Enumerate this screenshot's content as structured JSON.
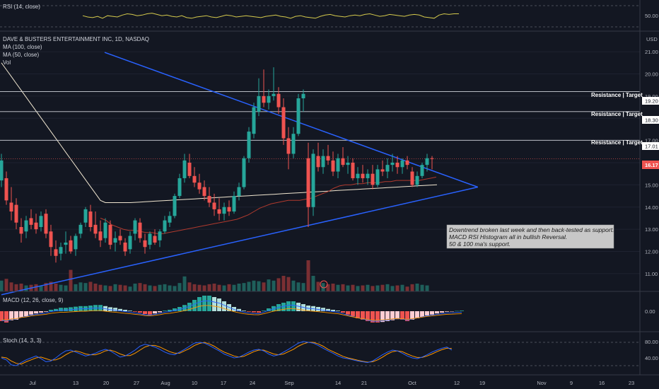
{
  "panes": {
    "rsi": {
      "title": "RSI (14, close)",
      "tick": "50.00"
    },
    "price": {
      "title": "DAVE & BUSTERS ENTERTAINMENT INC, 1D, NASDAQ",
      "indicators": [
        "MA (100, close)",
        "MA (50, close)",
        "Vol"
      ],
      "currency": "USD",
      "last_price": "16.17",
      "levels": [
        {
          "label": "Resistance | Target",
          "value": "19.20"
        },
        {
          "label": "Resistance | Target",
          "value": "18.30"
        },
        {
          "label": "Resistance | Target",
          "value": "17.01"
        }
      ]
    },
    "macd": {
      "title": "MACD (12, 26, close, 9)",
      "tick": "0.00"
    },
    "stoch": {
      "title": "Stoch (14, 3, 3)",
      "ticks": [
        "80.00",
        "40.00"
      ]
    }
  },
  "annotation": {
    "lines": [
      "Downtrend broken last week and then back-tested as support.",
      "MACD RSI Histogram all in bullish Reversal.",
      "50 & 100 ma's support."
    ]
  },
  "colors": {
    "bg": "#131722",
    "up": "#26a69a",
    "down": "#ef5350",
    "trend": "#2962ff",
    "ma50": "#f0e6d0",
    "ma100": "#b03a2e",
    "rsi": "#d4c94c",
    "stoch_k": "#2962ff",
    "stoch_d": "#ff9800"
  },
  "chart_data": {
    "type": "candlestick",
    "x_ticks": [
      "Jul",
      "13",
      "20",
      "27",
      "Aug",
      "10",
      "17",
      "24",
      "Sep",
      "14",
      "21",
      "Oct",
      "12",
      "19",
      "Nov",
      "9",
      "16",
      "23"
    ],
    "y_ticks": [
      "21.00",
      "20.00",
      "19.00",
      "18.00",
      "17.00",
      "16.00",
      "15.00",
      "14.00",
      "13.00",
      "12.00",
      "11.00"
    ],
    "ylim": [
      10.2,
      21.8
    ],
    "candles": [
      [
        15.2,
        16.4,
        14.9,
        16.1
      ],
      [
        15.3,
        15.6,
        14.1,
        14.3
      ],
      [
        14.2,
        14.9,
        13.4,
        13.8
      ],
      [
        14.1,
        14.4,
        13.0,
        13.3
      ],
      [
        13.1,
        13.5,
        12.4,
        12.8
      ],
      [
        12.9,
        13.6,
        12.6,
        13.4
      ],
      [
        13.5,
        13.9,
        13.0,
        13.2
      ],
      [
        13.3,
        13.7,
        12.8,
        13.0
      ],
      [
        13.1,
        13.8,
        12.9,
        13.6
      ],
      [
        13.7,
        13.9,
        12.6,
        12.8
      ],
      [
        12.9,
        13.2,
        11.8,
        12.2
      ],
      [
        12.1,
        12.5,
        11.5,
        11.8
      ],
      [
        11.9,
        12.4,
        11.6,
        12.2
      ],
      [
        12.3,
        12.9,
        11.9,
        12.4
      ],
      [
        12.5,
        12.7,
        11.9,
        12.0
      ],
      [
        12.1,
        12.8,
        11.8,
        12.7
      ],
      [
        12.8,
        13.3,
        12.6,
        13.2
      ],
      [
        13.3,
        14.0,
        13.1,
        13.9
      ],
      [
        13.8,
        14.1,
        12.9,
        13.1
      ],
      [
        13.2,
        13.8,
        12.6,
        12.8
      ],
      [
        12.9,
        13.4,
        12.2,
        12.5
      ],
      [
        12.6,
        13.5,
        12.4,
        13.3
      ],
      [
        13.2,
        13.4,
        12.1,
        12.3
      ],
      [
        12.4,
        12.9,
        12.0,
        12.6
      ],
      [
        12.7,
        13.0,
        12.3,
        12.5
      ],
      [
        12.4,
        12.6,
        11.8,
        12.0
      ],
      [
        12.1,
        12.9,
        11.9,
        12.7
      ],
      [
        12.8,
        13.5,
        12.5,
        13.4
      ],
      [
        13.3,
        13.5,
        12.4,
        12.6
      ],
      [
        12.5,
        12.8,
        11.9,
        12.2
      ],
      [
        12.3,
        12.9,
        12.1,
        12.8
      ],
      [
        12.7,
        13.0,
        12.3,
        12.4
      ],
      [
        12.5,
        13.0,
        12.2,
        12.9
      ],
      [
        12.9,
        13.6,
        12.8,
        13.4
      ],
      [
        13.3,
        13.8,
        13.1,
        13.6
      ],
      [
        13.6,
        14.6,
        13.5,
        14.5
      ],
      [
        14.5,
        15.5,
        14.4,
        15.3
      ],
      [
        15.3,
        16.4,
        15.1,
        16.1
      ],
      [
        16.0,
        16.4,
        15.3,
        15.4
      ],
      [
        15.4,
        15.8,
        14.9,
        15.1
      ],
      [
        15.1,
        15.5,
        14.6,
        14.8
      ],
      [
        14.9,
        15.2,
        14.3,
        14.5
      ],
      [
        14.5,
        14.9,
        14.0,
        14.2
      ],
      [
        14.2,
        14.6,
        13.6,
        13.9
      ],
      [
        13.9,
        14.4,
        13.4,
        13.7
      ],
      [
        13.7,
        14.2,
        13.4,
        14.0
      ],
      [
        14.0,
        14.3,
        13.6,
        13.8
      ],
      [
        13.8,
        14.7,
        13.7,
        14.5
      ],
      [
        14.5,
        15.1,
        14.3,
        14.9
      ],
      [
        14.9,
        16.3,
        14.8,
        16.2
      ],
      [
        16.2,
        17.6,
        16.0,
        17.4
      ],
      [
        17.3,
        18.7,
        17.1,
        18.5
      ],
      [
        18.3,
        19.8,
        18.1,
        19.0
      ],
      [
        19.0,
        20.2,
        18.5,
        18.7
      ],
      [
        18.7,
        19.3,
        18.4,
        19.0
      ],
      [
        19.0,
        20.3,
        18.8,
        19.1
      ],
      [
        19.1,
        19.4,
        18.2,
        18.5
      ],
      [
        18.5,
        18.9,
        16.8,
        17.1
      ],
      [
        17.1,
        17.6,
        15.7,
        16.4
      ],
      [
        16.4,
        17.6,
        16.2,
        17.3
      ],
      [
        17.3,
        19.1,
        17.2,
        18.9
      ],
      [
        18.9,
        19.3,
        18.3,
        19.1
      ],
      [
        16.2,
        16.9,
        13.1,
        14.0
      ],
      [
        14.0,
        16.6,
        13.6,
        16.4
      ],
      [
        16.3,
        16.9,
        15.6,
        15.8
      ],
      [
        15.8,
        16.6,
        15.5,
        16.3
      ],
      [
        16.3,
        16.8,
        15.9,
        16.1
      ],
      [
        16.1,
        16.5,
        15.4,
        15.6
      ],
      [
        15.6,
        16.4,
        15.3,
        16.2
      ],
      [
        16.2,
        16.7,
        15.8,
        15.9
      ],
      [
        15.9,
        16.3,
        15.5,
        16.0
      ],
      [
        16.0,
        16.2,
        15.2,
        15.3
      ],
      [
        15.3,
        15.8,
        15.0,
        15.5
      ],
      [
        15.5,
        15.9,
        15.1,
        15.3
      ],
      [
        15.3,
        15.7,
        15.0,
        15.5
      ],
      [
        15.5,
        15.9,
        14.8,
        15.0
      ],
      [
        15.0,
        15.9,
        14.9,
        15.7
      ],
      [
        15.7,
        16.1,
        15.4,
        15.6
      ],
      [
        15.6,
        16.2,
        15.3,
        15.9
      ],
      [
        15.9,
        16.4,
        15.6,
        16.0
      ],
      [
        16.0,
        16.3,
        15.5,
        15.8
      ],
      [
        15.8,
        16.2,
        15.5,
        16.1
      ],
      [
        16.1,
        16.3,
        15.7,
        15.9
      ],
      [
        15.6,
        15.8,
        14.9,
        15.0
      ],
      [
        15.0,
        15.6,
        14.9,
        15.4
      ],
      [
        15.4,
        16.0,
        15.3,
        15.9
      ],
      [
        15.9,
        16.4,
        15.6,
        16.2
      ],
      [
        16.2,
        16.3,
        15.7,
        16.17
      ]
    ],
    "trendlines": [
      {
        "name": "Downtrend",
        "points": [
          [
            20.86,
            20.97
          ],
          [
            96.25,
            14.9
          ]
        ]
      },
      {
        "name": "Support",
        "points": [
          [
            0,
            10.05
          ],
          [
            96.25,
            14.9
          ]
        ]
      }
    ],
    "horizontal_levels": [
      19.2,
      18.3,
      17.01
    ],
    "ma50": [
      13.5,
      13.4,
      13.2,
      13.1,
      13.0,
      12.95,
      12.95,
      12.9,
      12.85,
      12.85,
      12.8,
      12.8,
      12.85,
      12.9,
      12.95,
      13.0,
      13.05,
      13.1,
      13.15,
      13.2,
      13.25,
      13.3,
      13.35,
      13.4,
      13.45,
      13.55,
      13.65,
      13.8,
      13.95,
      14.05,
      14.15,
      14.2,
      14.25,
      14.3,
      14.3,
      14.3,
      14.35,
      14.4,
      14.5,
      14.6,
      14.7,
      14.85,
      14.95,
      15.0,
      15.0,
      15.05,
      15.05,
      15.1,
      15.1,
      15.1,
      15.15,
      15.15,
      15.2,
      15.2,
      15.2,
      15.2,
      15.2,
      15.25,
      15.3,
      15.35
    ],
    "rsi": [
      52,
      50,
      49,
      51,
      48,
      52,
      51,
      50,
      53,
      55,
      54,
      52,
      53,
      55,
      56,
      54,
      52,
      53,
      51,
      50,
      52,
      49,
      48,
      50,
      51,
      52,
      50,
      49,
      51,
      53,
      52,
      50,
      51,
      52,
      51,
      50,
      49,
      51,
      52,
      53,
      51,
      50,
      48,
      51,
      52,
      50,
      49,
      48,
      51,
      53,
      54,
      52,
      51,
      50,
      52,
      53,
      52,
      54,
      55,
      53,
      51,
      52,
      54,
      53,
      52,
      51,
      53,
      54,
      53,
      50,
      49,
      48,
      53,
      55,
      54,
      55,
      55
    ],
    "macd_hist": [
      -0.35,
      -0.4,
      -0.32,
      -0.3,
      -0.22,
      -0.18,
      -0.12,
      -0.08,
      -0.05,
      -0.02,
      0.05,
      0.08,
      0.12,
      0.12,
      0.14,
      0.16,
      0.18,
      0.18,
      0.2,
      0.22,
      0.22,
      0.18,
      0.14,
      0.12,
      0.08,
      0.05,
      0.02,
      -0.02,
      -0.05,
      -0.1,
      -0.12,
      -0.08,
      -0.04,
      0.02,
      0.05,
      0.1,
      0.15,
      0.22,
      0.3,
      0.4,
      0.5,
      0.55,
      0.55,
      0.5,
      0.45,
      0.35,
      0.25,
      0.15,
      0.08,
      0.02,
      -0.02,
      -0.04,
      -0.05,
      0.02,
      0.1,
      0.18,
      0.25,
      0.3,
      0.35,
      0.35,
      0.3,
      0.25,
      0.2,
      0.18,
      0.15,
      0.12,
      0.08,
      0.05,
      0.02,
      -0.05,
      -0.12,
      -0.18,
      -0.25,
      -0.3,
      -0.35,
      -0.4,
      -0.4,
      -0.38,
      -0.35,
      -0.32,
      -0.28,
      -0.3,
      -0.35,
      -0.3,
      -0.25,
      -0.2,
      -0.15,
      -0.12,
      -0.08,
      -0.05,
      -0.02,
      -0.01,
      0.01,
      0.02
    ],
    "stoch_k": [
      40,
      35,
      22,
      20,
      28,
      35,
      40,
      45,
      38,
      30,
      32,
      40,
      50,
      58,
      60,
      55,
      50,
      45,
      48,
      52,
      58,
      62,
      58,
      50,
      42,
      45,
      52,
      60,
      70,
      75,
      72,
      68,
      62,
      55,
      50,
      48,
      55,
      62,
      70,
      78,
      80,
      78,
      72,
      65,
      58,
      50,
      45,
      40,
      42,
      48,
      55,
      60,
      62,
      58,
      50,
      45,
      48,
      55,
      62,
      70,
      78,
      82,
      80,
      78,
      72,
      65,
      58,
      52,
      45,
      40,
      38,
      35,
      32,
      30,
      28,
      32,
      40,
      48,
      55,
      60,
      58,
      52,
      45,
      40,
      38,
      42,
      48,
      55,
      60,
      65,
      68,
      60
    ],
    "stoch_d": [
      42,
      40,
      32,
      26,
      24,
      30,
      35,
      40,
      42,
      38,
      34,
      35,
      40,
      48,
      55,
      58,
      55,
      50,
      48,
      48,
      52,
      58,
      60,
      56,
      50,
      46,
      46,
      52,
      60,
      68,
      72,
      72,
      68,
      62,
      56,
      52,
      52,
      58,
      64,
      72,
      77,
      80,
      76,
      70,
      62,
      55,
      50,
      45,
      42,
      44,
      50,
      56,
      60,
      60,
      55,
      50,
      48,
      50,
      56,
      62,
      70,
      76,
      80,
      80,
      76,
      70,
      62,
      56,
      50,
      44,
      40,
      37,
      34,
      31,
      29,
      30,
      35,
      42,
      50,
      56,
      58,
      56,
      50,
      45,
      41,
      41,
      45,
      50,
      56,
      61,
      65,
      64
    ],
    "volume": [
      1.8,
      2.1,
      1.5,
      1.2,
      1.3,
      1.0,
      1.1,
      1.2,
      0.9,
      1.4,
      1.6,
      1.3,
      1.1,
      1.0,
      3.6,
      1.2,
      1.5,
      1.4,
      1.6,
      1.3,
      1.1,
      1.0,
      0.9,
      1.2,
      1.1,
      1.0,
      0.8,
      1.3,
      1.4,
      1.2,
      1.0,
      0.9,
      1.1,
      1.2,
      1.0,
      0.9,
      1.4,
      2.5,
      1.5,
      1.2,
      1.1,
      1.0,
      1.2,
      1.3,
      1.1,
      1.0,
      1.2,
      1.1,
      1.3,
      1.4,
      1.6,
      1.8,
      1.7,
      1.5,
      2.0,
      1.8,
      2.2,
      2.6,
      2.4,
      1.8,
      1.5,
      1.4,
      5.2,
      2.6,
      1.6,
      1.4,
      1.2,
      1.3,
      1.1,
      1.2,
      1.0,
      1.1,
      0.9,
      1.0,
      1.1,
      0.9,
      1.0,
      1.1,
      1.2,
      0.9,
      1.0,
      1.1,
      0.8,
      1.2,
      1.3,
      1.1,
      1.0
    ]
  }
}
